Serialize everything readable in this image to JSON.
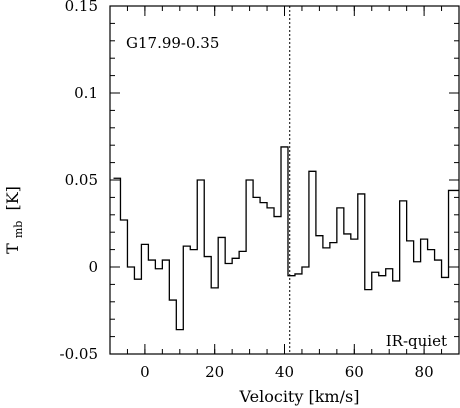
{
  "chart_data": {
    "type": "line",
    "step": true,
    "xlabel": "Velocity [km/s]",
    "ylabel_main": "T",
    "ylabel_sub": "mb",
    "ylabel_unit": "[K]",
    "xlim": [
      -10,
      90
    ],
    "ylim": [
      -0.05,
      0.15
    ],
    "x_major_ticks": [
      0,
      20,
      40,
      60,
      80
    ],
    "x_minor_step": 5,
    "y_major_ticks": [
      -0.05,
      0,
      0.05,
      0.1,
      0.15
    ],
    "y_tick_labels": [
      "-0.05",
      "0",
      "0.05",
      "0.1",
      "0.15"
    ],
    "y_minor_step": 0.01,
    "source_label": "G17.99-0.35",
    "classification_label": "IR-quiet",
    "vlsr_line": 41.5,
    "grid": false,
    "series": [
      {
        "x": [
          -8.0,
          -6.0,
          -4.0,
          -2.0,
          0.0,
          2.0,
          4.0,
          6.0,
          8.0,
          10.0,
          12.0,
          14.0,
          16.0,
          18.0,
          20.0,
          22.0,
          24.0,
          26.0,
          28.0,
          30.0,
          32.0,
          34.0,
          36.0,
          38.0,
          40.0,
          42.0,
          44.0,
          46.0,
          48.0,
          50.0,
          52.0,
          54.0,
          56.0,
          58.0,
          60.0,
          62.0,
          64.0,
          66.0,
          68.0,
          70.0,
          72.0,
          74.0,
          76.0,
          78.0,
          80.0,
          82.0,
          84.0,
          86.0,
          88.0,
          90.0
        ],
        "y": [
          0.051,
          0.027,
          0.0,
          -0.007,
          0.013,
          0.004,
          -0.001,
          0.004,
          -0.019,
          -0.036,
          0.012,
          0.01,
          0.05,
          0.006,
          -0.012,
          0.017,
          0.002,
          0.005,
          0.009,
          0.05,
          0.04,
          0.037,
          0.034,
          0.029,
          0.069,
          -0.005,
          -0.004,
          0.0,
          0.055,
          0.018,
          0.011,
          0.014,
          0.034,
          0.019,
          0.016,
          0.042,
          -0.013,
          -0.003,
          -0.005,
          -0.001,
          -0.008,
          0.038,
          0.015,
          0.003,
          0.016,
          0.01,
          0.004,
          -0.006,
          0.044,
          0.044
        ]
      }
    ]
  }
}
